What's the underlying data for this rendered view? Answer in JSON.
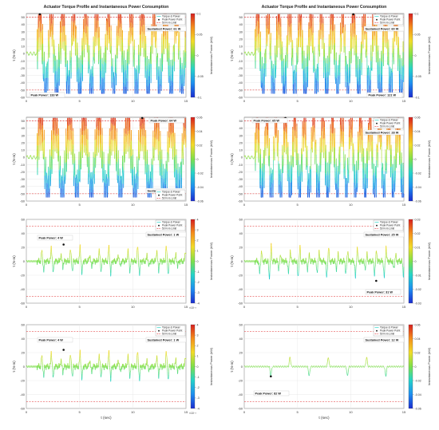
{
  "figure": {
    "panel_title": "Actuator Torque Profile and Instantaneous Power Consumption",
    "x_label": "t (sec)",
    "y_label": "τ (N·m)",
    "colorbar_label": "Instantaneous Power (kW)",
    "legend_labels": [
      "Torque & Power",
      "Peak Power Point",
      "50 N·m Limit"
    ],
    "limit_line_color": "#e0282a",
    "colormap": [
      "#1b2ccf",
      "#1e8ff0",
      "#25d4c8",
      "#7de04a",
      "#f2dc28",
      "#f48c1c",
      "#d61e1e"
    ]
  },
  "chart_data": [
    {
      "type": "line",
      "mode": "saturated",
      "title": "Actuator Torque Profile and Instantaneous Power Consumption",
      "xlim": [
        0,
        15
      ],
      "ylim": [
        -60,
        55
      ],
      "limit": 50,
      "x_ticks": [
        "0",
        "5",
        "10",
        "15"
      ],
      "y_ticks": [
        "50",
        "40",
        "30",
        "20",
        "10",
        "0",
        "-10",
        "-20",
        "-30",
        "-40",
        "-50",
        "-60"
      ],
      "cb_ticks": [
        "0.1",
        "0.05",
        "0",
        "-0.05",
        "-0.1"
      ],
      "peak_label": "Peak Power: 133 W",
      "sustained_label": "Sustained Power: 61 W",
      "has_title": true,
      "show_xlabel": false,
      "legend_pos": "top-right",
      "bursts": 13,
      "peak_idx": 0
    },
    {
      "type": "line",
      "mode": "saturated",
      "title": "Actuator Torque Profile and Instantaneous Power Consumption",
      "xlim": [
        0,
        15
      ],
      "ylim": [
        -60,
        55
      ],
      "limit": 50,
      "x_ticks": [
        "0",
        "5",
        "10",
        "15"
      ],
      "y_ticks": [
        "50",
        "40",
        "30",
        "20",
        "10",
        "0",
        "-10",
        "-20",
        "-30",
        "-40",
        "-50",
        "-60"
      ],
      "cb_ticks": [
        "0.1",
        "0.05",
        "0",
        "-0.05",
        "-0.1"
      ],
      "peak_label": "Peak Power: 121 W",
      "sustained_label": "Sustained Power: 60 W",
      "has_title": true,
      "show_xlabel": false,
      "legend_pos": "top-right",
      "bursts": 14,
      "peak_idx": 9
    },
    {
      "type": "line",
      "mode": "saturated",
      "xlim": [
        0,
        15
      ],
      "ylim": [
        -60,
        55
      ],
      "limit": 50,
      "x_ticks": [
        "0",
        "5",
        "10",
        "15"
      ],
      "y_ticks": [
        "50",
        "40",
        "30",
        "20",
        "10",
        "0",
        "-10",
        "-20",
        "-30",
        "-40",
        "-50",
        "-60"
      ],
      "cb_ticks": [
        "0.06",
        "0.04",
        "0.02",
        "0",
        "-0.02",
        "-0.04",
        "-0.06"
      ],
      "peak_label": "Peak Power: 64 W",
      "sustained_label": "Sustained Power: 34 W",
      "has_title": false,
      "show_xlabel": false,
      "legend_pos": "bottom-right",
      "bursts": 10,
      "peak_idx": 7
    },
    {
      "type": "line",
      "mode": "saturated",
      "xlim": [
        0,
        15
      ],
      "ylim": [
        -60,
        55
      ],
      "limit": 50,
      "x_ticks": [
        "0",
        "5",
        "10",
        "15"
      ],
      "y_ticks": [
        "50",
        "40",
        "30",
        "20",
        "10",
        "0",
        "-10",
        "-20",
        "-30",
        "-40",
        "-50",
        "-60"
      ],
      "cb_ticks": [
        "0.06",
        "0.04",
        "0.02",
        "0",
        "-0.02",
        "-0.04",
        "-0.06"
      ],
      "peak_label": "Peak Power: 65 W",
      "sustained_label": "Sustained Power: 28 W",
      "has_title": false,
      "show_xlabel": false,
      "legend_pos": "top-right",
      "bursts": 16,
      "peak_idx": 3
    },
    {
      "type": "line",
      "mode": "spiky",
      "xlim": [
        0,
        15
      ],
      "ylim": [
        -60,
        60
      ],
      "limit": 50,
      "x_ticks": [
        "0",
        "5",
        "10",
        "15"
      ],
      "y_ticks": [
        "60",
        "40",
        "20",
        "0",
        "-20",
        "-40",
        "-60"
      ],
      "cb_ticks": [
        "4",
        "3",
        "2",
        "1",
        "0",
        "-1",
        "-2",
        "-3",
        "-4"
      ],
      "cb_multiplier": "×10⁻³",
      "peak_label": "Peak Power: 4 W",
      "sustained_label": "Sustained Power: 1 W",
      "has_title": false,
      "show_xlabel": false,
      "legend_pos": "top-right",
      "spikes": 15,
      "amp": 22,
      "flip": false
    },
    {
      "type": "line",
      "mode": "spiky",
      "xlim": [
        0,
        15
      ],
      "ylim": [
        -60,
        60
      ],
      "limit": 50,
      "x_ticks": [
        "0",
        "5",
        "10",
        "15"
      ],
      "y_ticks": [
        "60",
        "40",
        "20",
        "0",
        "-20",
        "-40",
        "-60"
      ],
      "cb_ticks": [
        "0.03",
        "0.02",
        "0.01",
        "0",
        "-0.01",
        "-0.02",
        "-0.03"
      ],
      "peak_label": "Peak Power: 31 W",
      "sustained_label": "Sustained Power: 25 W",
      "has_title": false,
      "show_xlabel": false,
      "legend_pos": "top-right",
      "spikes": 15,
      "amp": 25,
      "flip": true
    },
    {
      "type": "line",
      "mode": "spiky",
      "xlim": [
        0,
        15
      ],
      "ylim": [
        -60,
        60
      ],
      "limit": 50,
      "x_ticks": [
        "0",
        "5",
        "10",
        "15"
      ],
      "y_ticks": [
        "60",
        "40",
        "20",
        "0",
        "-20",
        "-40",
        "-60"
      ],
      "cb_ticks": [
        "4",
        "3",
        "2",
        "1",
        "0",
        "-1",
        "-2",
        "-3",
        "-4"
      ],
      "cb_multiplier": "×10⁻³",
      "peak_label": "Peak Power: 4 W",
      "sustained_label": "Sustained Power: 1 W",
      "has_title": false,
      "show_xlabel": true,
      "legend_pos": "top-right",
      "spikes": 15,
      "amp": 22,
      "flip": false
    },
    {
      "type": "line",
      "mode": "sparse",
      "xlim": [
        0,
        15
      ],
      "ylim": [
        -60,
        60
      ],
      "limit": 50,
      "x_ticks": [
        "0",
        "5",
        "10",
        "15"
      ],
      "y_ticks": [
        "60",
        "40",
        "20",
        "0",
        "-20",
        "-40",
        "-60"
      ],
      "cb_ticks": [
        "0.06",
        "0.04",
        "0.02",
        "0",
        "-0.02",
        "-0.04",
        "-0.06"
      ],
      "peak_label": "Peak Power: 82 W",
      "sustained_label": "Sustained Power: 12 W",
      "has_title": false,
      "show_xlabel": true,
      "legend_pos": "top-right",
      "spikes": 7,
      "amp": 14
    }
  ]
}
